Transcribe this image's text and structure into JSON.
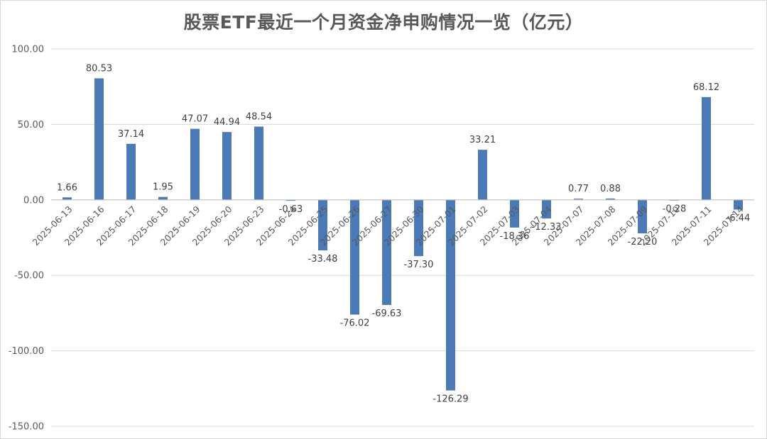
{
  "chart_data": {
    "type": "bar",
    "title": "股票ETF最近一个月资金净申购情况一览（亿元）",
    "xlabel": "",
    "ylabel": "",
    "ylim": [
      -150,
      100
    ],
    "yticks": [
      100,
      50,
      0,
      -50,
      -100,
      -150
    ],
    "ytick_labels": [
      "100.00",
      "50.00",
      "0.00",
      "-50.00",
      "-100.00",
      "-150.00"
    ],
    "grid": true,
    "legend": "none",
    "colors": {
      "bar": "#4a7ab7",
      "grid": "#d9d9d9",
      "axis": "#bfbfbf",
      "text": "#595959"
    },
    "categories": [
      "2025-06-13",
      "2025-06-16",
      "2025-06-17",
      "2025-06-18",
      "2025-06-19",
      "2025-06-20",
      "2025-06-23",
      "2025-06-24",
      "2025-06-25",
      "2025-06-26",
      "2025-06-27",
      "2025-06-30",
      "2025-07-01",
      "2025-07-02",
      "2025-07-03",
      "2025-07-04",
      "2025-07-07",
      "2025-07-08",
      "2025-07-09",
      "2025-07-10",
      "2025-07-11",
      "2025-07-14"
    ],
    "values": [
      1.66,
      80.53,
      37.14,
      1.95,
      47.07,
      44.94,
      48.54,
      -0.63,
      -33.48,
      -76.02,
      -69.63,
      -37.3,
      -126.29,
      33.21,
      -18.36,
      -12.33,
      0.77,
      0.88,
      -22.2,
      -0.28,
      68.12,
      -6.44
    ],
    "value_labels": [
      "1.66",
      "80.53",
      "37.14",
      "1.95",
      "47.07",
      "44.94",
      "48.54",
      "-0.63",
      "-33.48",
      "-76.02",
      "-69.63",
      "-37.30",
      "-126.29",
      "33.21",
      "-18.36",
      "-12.33",
      "0.77",
      "0.88",
      "-22.20",
      "-0.28",
      "68.12",
      "-6.44"
    ]
  }
}
